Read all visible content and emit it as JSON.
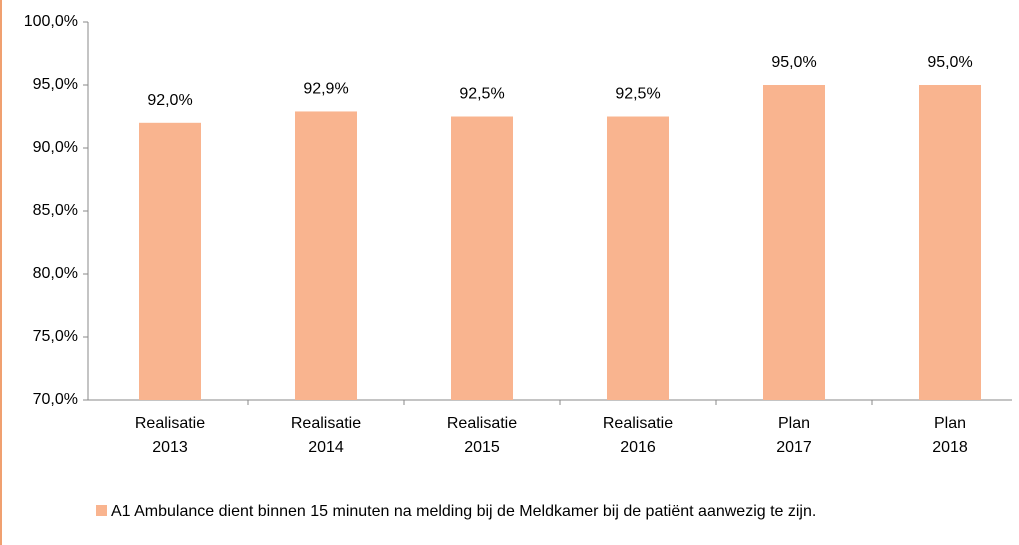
{
  "chart_data": {
    "type": "bar",
    "categories": [
      [
        "Realisatie",
        "2013"
      ],
      [
        "Realisatie",
        "2014"
      ],
      [
        "Realisatie",
        "2015"
      ],
      [
        "Realisatie",
        "2016"
      ],
      [
        "Plan",
        "2017"
      ],
      [
        "Plan",
        "2018"
      ]
    ],
    "series": [
      {
        "name": "A1 Ambulance dient binnen 15 minuten na melding bij de Meldkamer bij de patiënt aanwezig te zijn.",
        "color": "#f9b48f",
        "values": [
          92.0,
          92.9,
          92.5,
          92.5,
          95.0,
          95.0
        ],
        "value_labels": [
          "92,0%",
          "92,9%",
          "92,5%",
          "92,5%",
          "95,0%",
          "95,0%"
        ]
      }
    ],
    "ylim": [
      70,
      100
    ],
    "yticks": [
      {
        "value": 70,
        "label": "70,0%"
      },
      {
        "value": 75,
        "label": "75,0%"
      },
      {
        "value": 80,
        "label": "80,0%"
      },
      {
        "value": 85,
        "label": "85,0%"
      },
      {
        "value": 90,
        "label": "90,0%"
      },
      {
        "value": 95,
        "label": "95,0%"
      },
      {
        "value": 100,
        "label": "100,0%"
      }
    ],
    "grid": false
  }
}
